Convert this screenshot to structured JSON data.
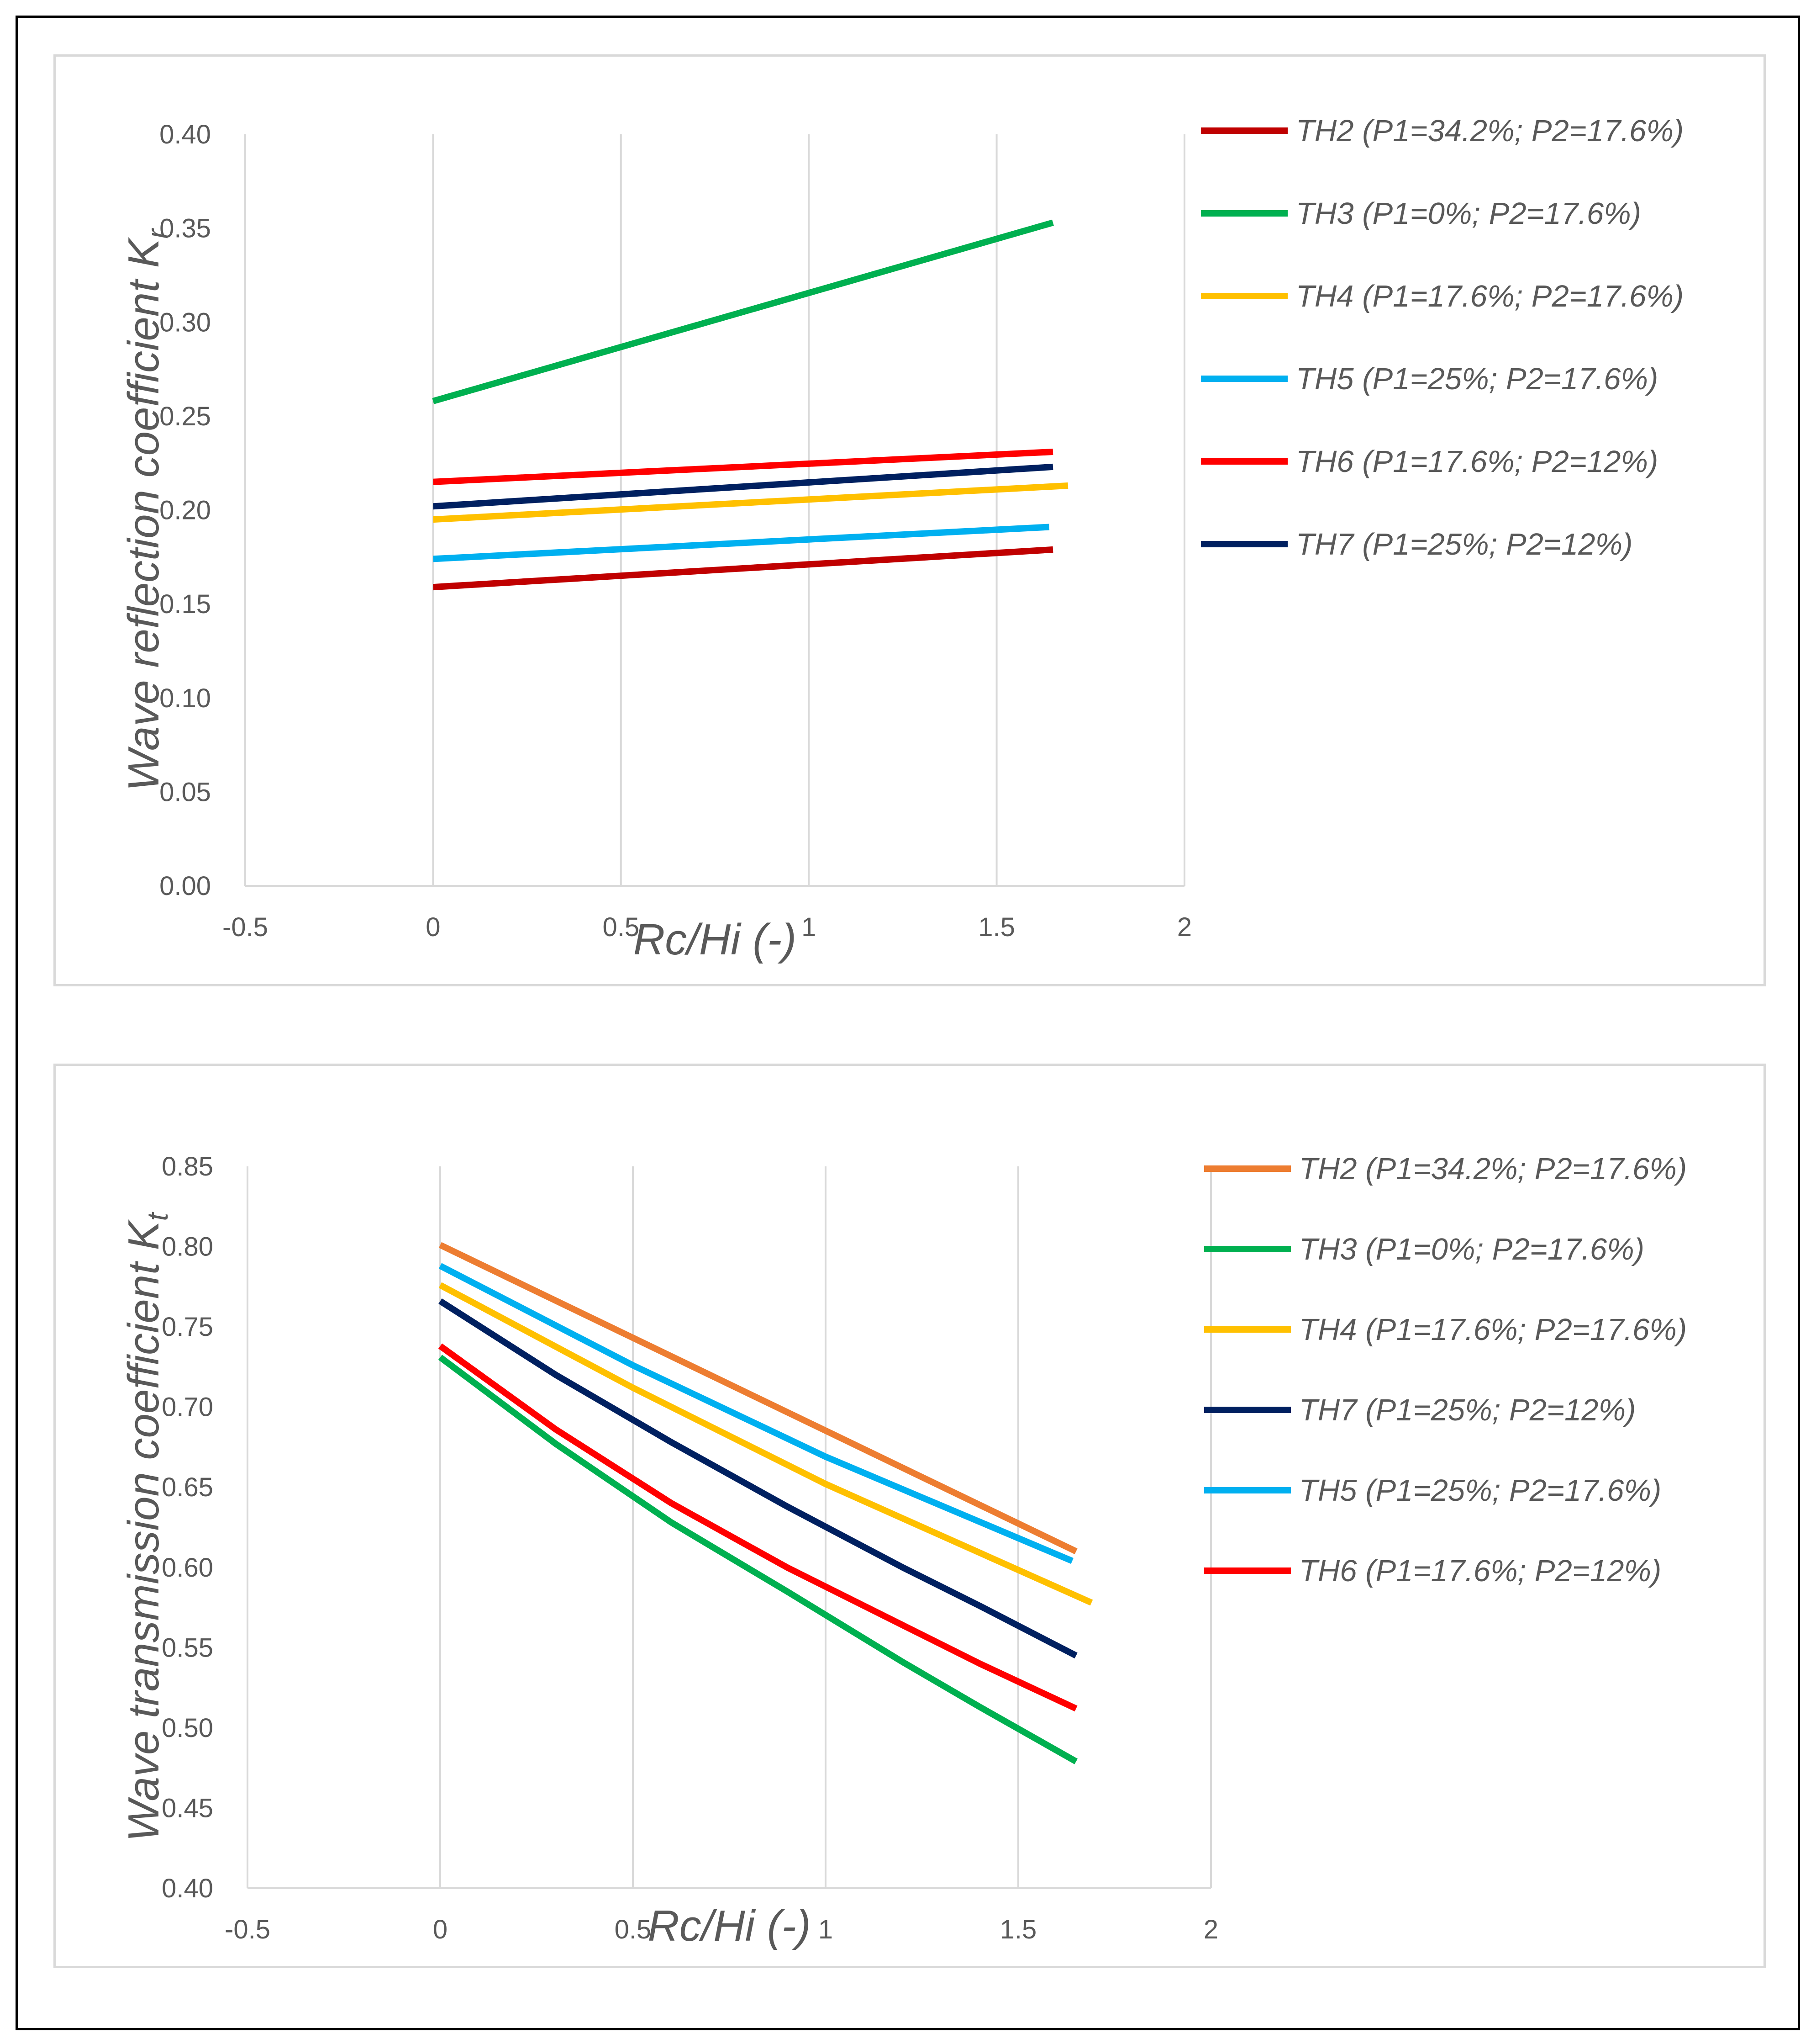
{
  "chart_data": [
    {
      "type": "line",
      "xlabel": "Rc/Hi (-)",
      "ylabel_main": "Wave reflection coefficient K",
      "ylabel_sub": "r",
      "xlim": [
        -0.5,
        2
      ],
      "ylim": [
        0,
        0.4
      ],
      "xticks": [
        -0.5,
        0,
        0.5,
        1,
        1.5,
        2
      ],
      "xtick_labels": [
        "-0.5",
        "0",
        "0.5",
        "1",
        "1.5",
        "2"
      ],
      "yticks": [
        0,
        0.05,
        0.1,
        0.15,
        0.2,
        0.25,
        0.3,
        0.35,
        0.4
      ],
      "ytick_labels": [
        "0.00",
        "0.05",
        "0.10",
        "0.15",
        "0.20",
        "0.25",
        "0.30",
        "0.35",
        "0.40"
      ],
      "grid": "vertical",
      "legend_position": "right",
      "series": [
        {
          "name": "TH2 (P1=34.2%; P2=17.6%)",
          "color": "#c00000",
          "x": [
            0,
            1.65
          ],
          "y": [
            0.159,
            0.179
          ]
        },
        {
          "name": "TH3 (P1=0%; P2=17.6%)",
          "color": "#00b050",
          "x": [
            0,
            1.65
          ],
          "y": [
            0.258,
            0.353
          ]
        },
        {
          "name": "TH4 (P1=17.6%; P2=17.6%)",
          "color": "#ffc000",
          "x": [
            0,
            1.69
          ],
          "y": [
            0.195,
            0.213
          ]
        },
        {
          "name": "TH5 (P1=25%; P2=17.6%)",
          "color": "#00b0f0",
          "x": [
            0,
            1.64
          ],
          "y": [
            0.174,
            0.191
          ]
        },
        {
          "name": "TH6 (P1=17.6%; P2=12%)",
          "color": "#ff0000",
          "x": [
            0,
            1.65
          ],
          "y": [
            0.215,
            0.231
          ]
        },
        {
          "name": "TH7 (P1=25%; P2=12%)",
          "color": "#002060",
          "x": [
            0,
            1.65
          ],
          "y": [
            0.202,
            0.223
          ]
        }
      ]
    },
    {
      "type": "line",
      "xlabel": "Rc/Hi (-)",
      "ylabel_main": "Wave transmission coefficient K",
      "ylabel_sub": "t",
      "xlim": [
        -0.5,
        2
      ],
      "ylim": [
        0.4,
        0.85
      ],
      "xticks": [
        -0.5,
        0,
        0.5,
        1,
        1.5,
        2
      ],
      "xtick_labels": [
        "-0.5",
        "0",
        "0.5",
        "1",
        "1.5",
        "2"
      ],
      "yticks": [
        0.4,
        0.45,
        0.5,
        0.55,
        0.6,
        0.65,
        0.7,
        0.75,
        0.8,
        0.85
      ],
      "ytick_labels": [
        "0.40",
        "0.45",
        "0.50",
        "0.55",
        "0.60",
        "0.65",
        "0.70",
        "0.75",
        "0.80",
        "0.85"
      ],
      "grid": "vertical",
      "legend_position": "right",
      "series": [
        {
          "name": "TH2 (P1=34.2%; P2=17.6%)",
          "color": "#ed7d31",
          "x": [
            0,
            1.65
          ],
          "y": [
            0.801,
            0.61
          ]
        },
        {
          "name": "TH3 (P1=0%; P2=17.6%)",
          "color": "#00b050",
          "x": [
            0,
            0.3,
            0.6,
            0.9,
            1.2,
            1.4,
            1.65
          ],
          "y": [
            0.731,
            0.677,
            0.628,
            0.585,
            0.541,
            0.513,
            0.479
          ]
        },
        {
          "name": "TH4 (P1=17.6%; P2=17.6%)",
          "color": "#ffc000",
          "x": [
            0,
            0.5,
            1,
            1.69
          ],
          "y": [
            0.776,
            0.712,
            0.652,
            0.578
          ]
        },
        {
          "name": "TH7 (P1=25%; P2=12%)",
          "color": "#002060",
          "x": [
            0,
            0.3,
            0.6,
            0.9,
            1.2,
            1.4,
            1.65
          ],
          "y": [
            0.766,
            0.72,
            0.678,
            0.638,
            0.6,
            0.576,
            0.545
          ]
        },
        {
          "name": "TH5 (P1=25%; P2=17.6%)",
          "color": "#00b0f0",
          "x": [
            0,
            0.5,
            1,
            1.64
          ],
          "y": [
            0.788,
            0.726,
            0.669,
            0.604
          ]
        },
        {
          "name": "TH6 (P1=17.6%; P2=12%)",
          "color": "#ff0000",
          "x": [
            0,
            0.3,
            0.6,
            0.9,
            1.2,
            1.4,
            1.65
          ],
          "y": [
            0.738,
            0.686,
            0.64,
            0.6,
            0.564,
            0.54,
            0.512
          ]
        }
      ]
    }
  ]
}
